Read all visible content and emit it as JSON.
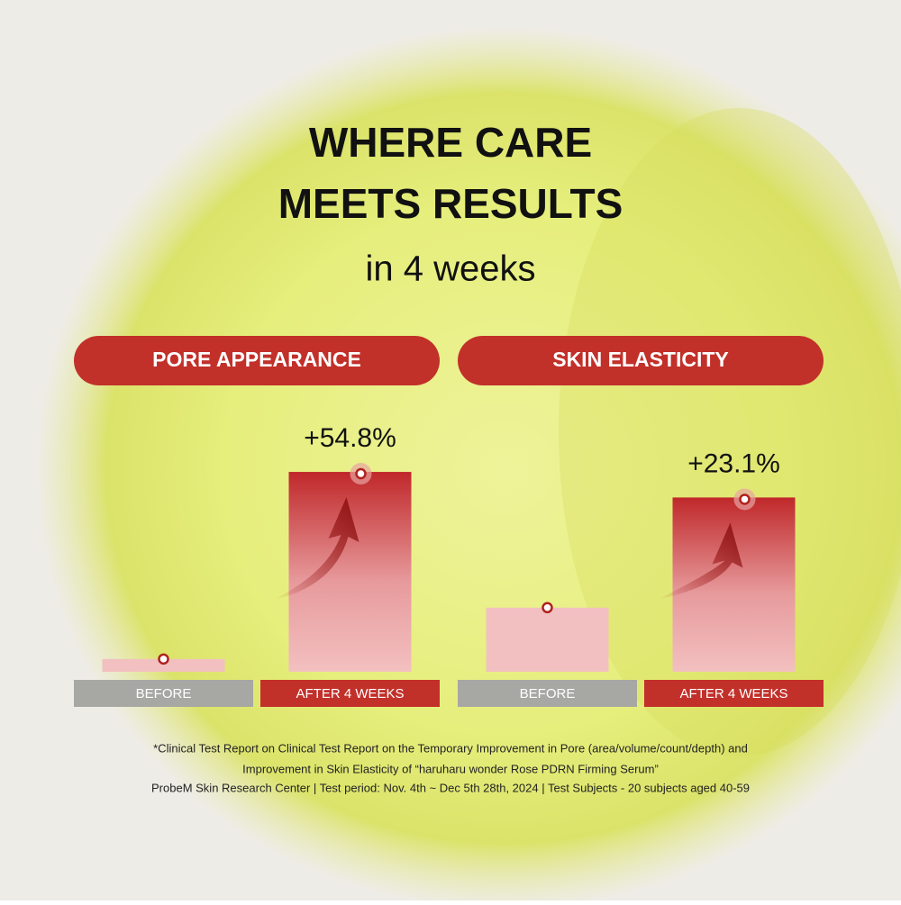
{
  "title": [
    "WHERE CARE",
    "MEETS RESULTS"
  ],
  "subtitle": "in 4 weeks",
  "chart_data": [
    {
      "type": "bar",
      "title": "PORE APPEARANCE",
      "categories": [
        "BEFORE",
        "AFTER 4 WEEKS"
      ],
      "values": [
        3.5,
        54.8
      ],
      "value_labels": [
        null,
        "+54.8%"
      ],
      "ylim": [
        0,
        60
      ]
    },
    {
      "type": "bar",
      "title": "SKIN ELASTICITY",
      "categories": [
        "BEFORE",
        "AFTER 4 WEEKS"
      ],
      "values": [
        8.5,
        23.1
      ],
      "value_labels": [
        null,
        "+23.1%"
      ],
      "ylim": [
        0,
        29
      ]
    }
  ],
  "footnote": [
    "*Clinical Test Report on Clinical Test Report on the Temporary Improvement in Pore (area/volume/count/depth) and",
    "Improvement in Skin Elasticity of “haruharu wonder Rose PDRN Firming Serum”",
    "ProbeM Skin Research Center | Test period: Nov. 4th ~ Dec 5th 28th, 2024 | Test Subjects - 20 subjects aged 40-59"
  ]
}
